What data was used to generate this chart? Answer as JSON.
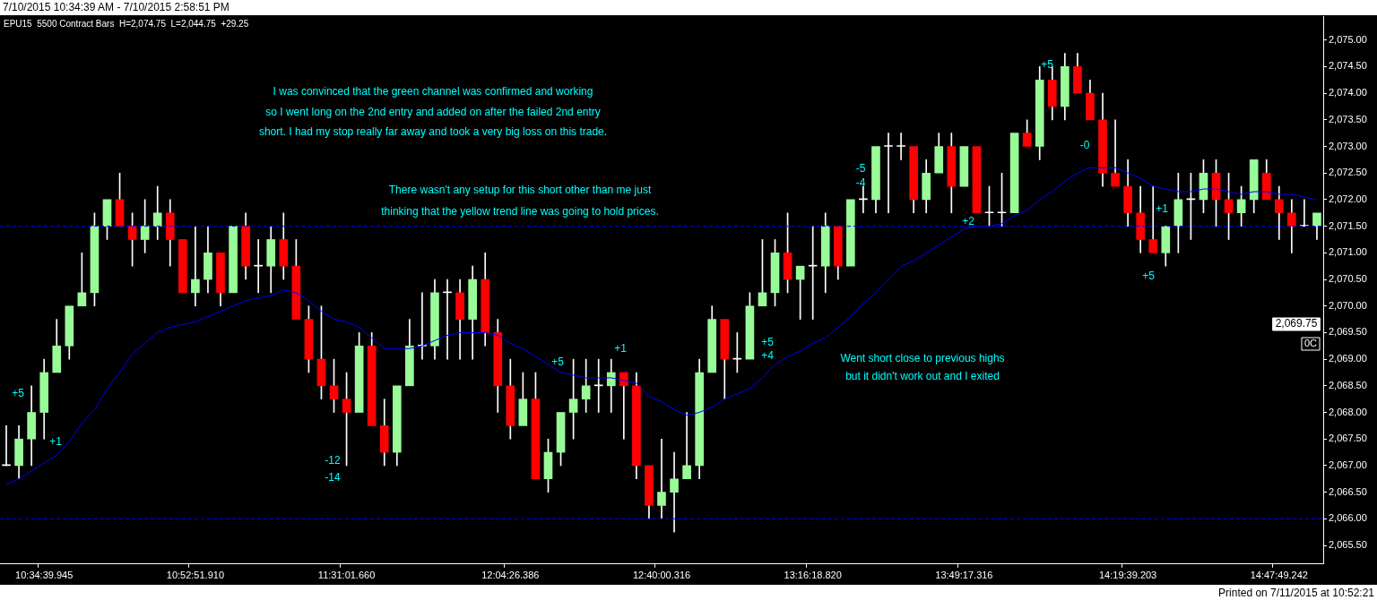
{
  "chart_data": {
    "type": "candlestick",
    "title": "7/10/2015 10:34:39 AM - 7/10/2015 2:58:51 PM",
    "subtitle": "EPU15  5500 Contract Bars  H=2,074.75  L=2,044.75  +29.25",
    "categories": [
      null,
      null,
      null,
      "10:34:39.945",
      null,
      null,
      null,
      null,
      null,
      null,
      null,
      null,
      null,
      null,
      null,
      "10:52:51.910",
      null,
      null,
      null,
      null,
      null,
      null,
      null,
      null,
      null,
      null,
      null,
      "11:31:01.660",
      null,
      null,
      null,
      null,
      null,
      null,
      null,
      null,
      null,
      null,
      null,
      null,
      "12:04:26.386",
      null,
      null,
      null,
      null,
      null,
      null,
      null,
      null,
      null,
      null,
      null,
      "12:40:00.316",
      null,
      null,
      null,
      null,
      null,
      null,
      null,
      null,
      null,
      null,
      null,
      "13:16:18.820",
      null,
      null,
      null,
      null,
      null,
      null,
      null,
      null,
      null,
      null,
      null,
      "13:49:17.316",
      null,
      null,
      null,
      null,
      null,
      null,
      null,
      null,
      null,
      null,
      null,
      null,
      "14:19:39.203",
      null,
      null,
      null,
      null,
      null,
      null,
      null,
      null,
      null,
      null,
      null,
      "14:47:49.242",
      null,
      null,
      null
    ],
    "ohlc": [
      [
        2067.0,
        2067.75,
        2067.0,
        2067.0
      ],
      [
        2067.0,
        2067.75,
        2066.75,
        2067.5
      ],
      [
        2067.5,
        2068.5,
        2067.0,
        2068.0
      ],
      [
        2068.0,
        2069.0,
        2067.5,
        2068.75
      ],
      [
        2068.75,
        2069.75,
        2068.75,
        2069.25
      ],
      [
        2069.25,
        2070.0,
        2069.0,
        2070.0
      ],
      [
        2070.0,
        2071.0,
        2070.0,
        2070.25
      ],
      [
        2070.25,
        2071.75,
        2070.0,
        2071.5
      ],
      [
        2071.5,
        2072.0,
        2071.25,
        2072.0
      ],
      [
        2072.0,
        2072.5,
        2071.5,
        2071.5
      ],
      [
        2071.5,
        2071.75,
        2070.75,
        2071.25
      ],
      [
        2071.25,
        2072.0,
        2071.0,
        2071.5
      ],
      [
        2071.5,
        2072.25,
        2071.25,
        2071.75
      ],
      [
        2071.75,
        2072.0,
        2070.75,
        2071.25
      ],
      [
        2071.25,
        2071.25,
        2070.25,
        2070.25
      ],
      [
        2070.25,
        2071.5,
        2070.0,
        2070.5
      ],
      [
        2070.5,
        2071.5,
        2070.25,
        2071.0
      ],
      [
        2071.0,
        2071.0,
        2070.0,
        2070.25
      ],
      [
        2070.25,
        2071.5,
        2070.25,
        2071.5
      ],
      [
        2071.5,
        2071.75,
        2070.5,
        2070.75
      ],
      [
        2070.75,
        2071.25,
        2070.25,
        2070.75
      ],
      [
        2070.75,
        2071.5,
        2070.25,
        2071.25
      ],
      [
        2071.25,
        2071.75,
        2070.5,
        2070.75
      ],
      [
        2070.75,
        2071.25,
        2069.75,
        2069.75
      ],
      [
        2069.75,
        2070.0,
        2068.75,
        2069.0
      ],
      [
        2069.0,
        2070.0,
        2068.25,
        2068.5
      ],
      [
        2068.5,
        2069.0,
        2068.0,
        2068.25
      ],
      [
        2068.25,
        2068.75,
        2067.0,
        2068.0
      ],
      [
        2068.0,
        2069.5,
        2068.0,
        2069.25
      ],
      [
        2069.25,
        2069.5,
        2067.75,
        2067.75
      ],
      [
        2067.75,
        2068.25,
        2067.0,
        2067.25
      ],
      [
        2067.25,
        2068.5,
        2067.0,
        2068.5
      ],
      [
        2068.5,
        2069.75,
        2068.5,
        2069.25
      ],
      [
        2069.25,
        2070.25,
        2069.0,
        2069.25
      ],
      [
        2069.25,
        2070.5,
        2069.0,
        2070.25
      ],
      [
        2070.25,
        2070.5,
        2069.0,
        2070.25
      ],
      [
        2070.25,
        2070.5,
        2069.0,
        2069.75
      ],
      [
        2069.75,
        2070.75,
        2069.0,
        2070.5
      ],
      [
        2070.5,
        2071.0,
        2069.25,
        2069.5
      ],
      [
        2069.5,
        2069.75,
        2068.0,
        2068.5
      ],
      [
        2068.5,
        2069.0,
        2067.5,
        2067.75
      ],
      [
        2067.75,
        2068.75,
        2067.75,
        2068.25
      ],
      [
        2068.25,
        2068.75,
        2066.75,
        2066.75
      ],
      [
        2066.75,
        2067.5,
        2066.5,
        2067.25
      ],
      [
        2067.25,
        2068.0,
        2067.0,
        2068.0
      ],
      [
        2068.0,
        2069.0,
        2067.5,
        2068.25
      ],
      [
        2068.25,
        2069.0,
        2068.0,
        2068.5
      ],
      [
        2068.5,
        2069.0,
        2068.0,
        2068.5
      ],
      [
        2068.5,
        2069.0,
        2068.0,
        2068.75
      ],
      [
        2068.75,
        2068.75,
        2067.5,
        2068.5
      ],
      [
        2068.5,
        2068.75,
        2066.75,
        2067.0
      ],
      [
        2067.0,
        2067.0,
        2066.0,
        2066.25
      ],
      [
        2066.25,
        2067.5,
        2066.0,
        2066.5
      ],
      [
        2066.5,
        2067.25,
        2065.75,
        2066.75
      ],
      [
        2066.75,
        2068.0,
        2066.75,
        2067.0
      ],
      [
        2067.0,
        2069.0,
        2066.75,
        2068.75
      ],
      [
        2068.75,
        2070.0,
        2068.75,
        2069.75
      ],
      [
        2069.75,
        2069.75,
        2068.25,
        2069.0
      ],
      [
        2069.0,
        2069.5,
        2068.75,
        2069.0
      ],
      [
        2069.0,
        2070.25,
        2069.0,
        2070.0
      ],
      [
        2070.0,
        2071.25,
        2070.0,
        2070.25
      ],
      [
        2070.25,
        2071.25,
        2070.0,
        2071.0
      ],
      [
        2071.0,
        2071.75,
        2070.25,
        2070.5
      ],
      [
        2070.5,
        2070.75,
        2069.75,
        2070.75
      ],
      [
        2070.75,
        2071.5,
        2069.75,
        2070.75
      ],
      [
        2070.75,
        2071.75,
        2070.25,
        2071.5
      ],
      [
        2071.5,
        2071.5,
        2070.5,
        2070.75
      ],
      [
        2070.75,
        2072.0,
        2070.75,
        2072.0
      ],
      [
        2072.0,
        2072.25,
        2071.75,
        2072.0
      ],
      [
        2072.0,
        2073.0,
        2071.75,
        2073.0
      ],
      [
        2073.0,
        2073.25,
        2071.75,
        2073.0
      ],
      [
        2073.0,
        2073.25,
        2072.75,
        2073.0
      ],
      [
        2073.0,
        2073.0,
        2071.75,
        2072.0
      ],
      [
        2072.0,
        2072.75,
        2071.75,
        2072.5
      ],
      [
        2072.5,
        2073.25,
        2072.5,
        2073.0
      ],
      [
        2073.0,
        2073.25,
        2071.75,
        2072.25
      ],
      [
        2072.25,
        2073.0,
        2072.25,
        2073.0
      ],
      [
        2073.0,
        2073.0,
        2071.75,
        2071.75
      ],
      [
        2071.75,
        2072.25,
        2071.5,
        2071.75
      ],
      [
        2071.75,
        2072.5,
        2071.5,
        2071.75
      ],
      [
        2071.75,
        2073.25,
        2071.75,
        2073.25
      ],
      [
        2073.25,
        2073.5,
        2073.0,
        2073.0
      ],
      [
        2073.0,
        2074.5,
        2072.75,
        2074.25
      ],
      [
        2074.25,
        2074.5,
        2073.5,
        2073.75
      ],
      [
        2073.75,
        2074.75,
        2073.5,
        2074.5
      ],
      [
        2074.5,
        2074.75,
        2074.0,
        2074.0
      ],
      [
        2074.0,
        2074.25,
        2073.5,
        2073.5
      ],
      [
        2073.5,
        2074.0,
        2072.25,
        2072.5
      ],
      [
        2072.5,
        2073.5,
        2072.25,
        2072.25
      ],
      [
        2072.25,
        2072.75,
        2071.5,
        2071.75
      ],
      [
        2071.75,
        2072.25,
        2071.0,
        2071.25
      ],
      [
        2071.25,
        2072.25,
        2071.0,
        2071.0
      ],
      [
        2071.0,
        2071.5,
        2070.75,
        2071.5
      ],
      [
        2071.5,
        2072.5,
        2071.0,
        2072.0
      ],
      [
        2072.0,
        2072.5,
        2071.25,
        2072.0
      ],
      [
        2072.0,
        2072.75,
        2071.75,
        2072.5
      ],
      [
        2072.5,
        2072.75,
        2071.5,
        2072.0
      ],
      [
        2072.0,
        2072.5,
        2071.25,
        2071.75
      ],
      [
        2071.75,
        2072.25,
        2071.5,
        2072.0
      ],
      [
        2072.0,
        2072.75,
        2071.75,
        2072.75
      ],
      [
        2072.5,
        2072.75,
        2072.0,
        2072.0
      ],
      [
        2072.0,
        2072.25,
        2071.25,
        2071.75
      ],
      [
        2071.75,
        2072.0,
        2071.0,
        2071.5
      ],
      [
        2071.5,
        2072.0,
        2071.5,
        2071.5
      ],
      [
        2071.5,
        2071.75,
        2071.25,
        2071.75
      ]
    ],
    "colors": [
      "#ffffff",
      "#98fb98",
      "#98fb98",
      "#98fb98",
      "#98fb98",
      "#98fb98",
      "#98fb98",
      "#98fb98",
      "#98fb98",
      "#ff0000",
      "#ff0000",
      "#98fb98",
      "#98fb98",
      "#ff0000",
      "#ff0000",
      "#98fb98",
      "#98fb98",
      "#ff0000",
      "#98fb98",
      "#ff0000",
      "#ffffff",
      "#98fb98",
      "#ff0000",
      "#ff0000",
      "#ff0000",
      "#ff0000",
      "#ff0000",
      "#ff0000",
      "#98fb98",
      "#ff0000",
      "#ff0000",
      "#98fb98",
      "#98fb98",
      "#ffffff",
      "#98fb98",
      "#ffffff",
      "#ff0000",
      "#98fb98",
      "#ff0000",
      "#ff0000",
      "#ff0000",
      "#98fb98",
      "#ff0000",
      "#98fb98",
      "#98fb98",
      "#98fb98",
      "#98fb98",
      "#ffffff",
      "#98fb98",
      "#ff0000",
      "#ff0000",
      "#ff0000",
      "#98fb98",
      "#98fb98",
      "#98fb98",
      "#98fb98",
      "#98fb98",
      "#ff0000",
      "#ffffff",
      "#98fb98",
      "#98fb98",
      "#98fb98",
      "#ff0000",
      "#98fb98",
      "#ffffff",
      "#98fb98",
      "#ff0000",
      "#98fb98",
      "#ffffff",
      "#98fb98",
      "#ffffff",
      "#ffffff",
      "#ff0000",
      "#98fb98",
      "#98fb98",
      "#ff0000",
      "#98fb98",
      "#ff0000",
      "#ffffff",
      "#ffffff",
      "#98fb98",
      "#ff0000",
      "#98fb98",
      "#ff0000",
      "#98fb98",
      "#ff0000",
      "#ff0000",
      "#ff0000",
      "#ff0000",
      "#ff0000",
      "#ff0000",
      "#ff0000",
      "#98fb98",
      "#98fb98",
      "#ffffff",
      "#98fb98",
      "#ff0000",
      "#ff0000",
      "#98fb98",
      "#98fb98",
      "#ff0000",
      "#ff0000",
      "#ff0000",
      "#ffffff",
      "#98fb98"
    ],
    "series": [
      {
        "type": "line",
        "color": "#0000ff",
        "values": [
          2066.65,
          2066.75,
          2066.9,
          2067.05,
          2067.2,
          2067.45,
          2067.8,
          2068.05,
          2068.45,
          2068.75,
          2069.1,
          2069.3,
          2069.5,
          2069.6,
          2069.65,
          2069.7,
          2069.8,
          2069.9,
          2070.0,
          2070.1,
          2070.15,
          2070.2,
          2070.3,
          2070.25,
          2070.1,
          2069.9,
          2069.75,
          2069.7,
          2069.6,
          2069.4,
          2069.2,
          2069.2,
          2069.2,
          2069.25,
          2069.35,
          2069.45,
          2069.5,
          2069.5,
          2069.5,
          2069.45,
          2069.3,
          2069.2,
          2069.05,
          2068.9,
          2068.75,
          2068.7,
          2068.65,
          2068.65,
          2068.65,
          2068.6,
          2068.55,
          2068.3,
          2068.2,
          2068.05,
          2067.95,
          2068.0,
          2068.1,
          2068.25,
          2068.35,
          2068.45,
          2068.65,
          2068.9,
          2069.05,
          2069.15,
          2069.3,
          2069.4,
          2069.6,
          2069.8,
          2070.05,
          2070.25,
          2070.5,
          2070.75,
          2070.85,
          2071.0,
          2071.15,
          2071.3,
          2071.45,
          2071.5,
          2071.5,
          2071.55,
          2071.7,
          2071.8,
          2072.0,
          2072.15,
          2072.35,
          2072.5,
          2072.6,
          2072.6,
          2072.6,
          2072.5,
          2072.4,
          2072.25,
          2072.2,
          2072.15,
          2072.15,
          2072.2,
          2072.2,
          2072.15,
          2072.1,
          2072.15,
          2072.15,
          2072.1,
          2072.1,
          2072.05,
          2072.0
        ]
      }
    ],
    "ylim": [
      2065.15,
      2075.45
    ],
    "yticks": [
      {
        "value": 2065.5,
        "label": "2,065.50"
      },
      {
        "value": 2066,
        "label": "2,066.00"
      },
      {
        "value": 2066.5,
        "label": "2,066.50"
      },
      {
        "value": 2067,
        "label": "2,067.00"
      },
      {
        "value": 2067.5,
        "label": "2,067.50"
      },
      {
        "value": 2068,
        "label": "2,068.00"
      },
      {
        "value": 2068.5,
        "label": "2,068.50"
      },
      {
        "value": 2069,
        "label": "2,069.00"
      },
      {
        "value": 2069.5,
        "label": "2,069.50"
      },
      {
        "value": 2070,
        "label": "2,070.00"
      },
      {
        "value": 2070.5,
        "label": "2,070.50"
      },
      {
        "value": 2071,
        "label": "2,071.00"
      },
      {
        "value": 2071.5,
        "label": "2,071.50"
      },
      {
        "value": 2072,
        "label": "2,072.00"
      },
      {
        "value": 2072.5,
        "label": "2,072.50"
      },
      {
        "value": 2073,
        "label": "2,073.00"
      },
      {
        "value": 2073.5,
        "label": "2,073.50"
      },
      {
        "value": 2074,
        "label": "2,074.00"
      },
      {
        "value": 2074.5,
        "label": "2,074.50"
      },
      {
        "value": 2075,
        "label": "2,075.00"
      }
    ],
    "ref_lines": [
      {
        "axis": "y",
        "value": 2071.5,
        "color": "#0000ff",
        "line_style": "dashed"
      },
      {
        "axis": "y",
        "value": 2066.0,
        "color": "#0000ff",
        "line_style": "dashed"
      }
    ],
    "annotations": [
      "I was convinced that the green channel was confirmed and working",
      "so I went long on the 2nd entry and added on after the failed 2nd entry",
      "short. I had my stop really far away and took a very big loss on this trade.",
      "There wasn't any setup for this short other than me just",
      "thinking that the yellow trend line was going to hold prices.",
      "Went short close to previous highs",
      "but it didn't work out and I exited",
      "+5",
      "+1",
      "-12",
      "-14",
      "+5",
      "+1",
      "+5",
      "+4",
      "-5",
      "-4",
      "+2",
      "+5",
      "-0",
      "+1",
      "+5",
      "2,069.75",
      "0C",
      "Printed on 7/11/2015 at 10:52:21"
    ],
    "grid": false,
    "legend": false
  }
}
